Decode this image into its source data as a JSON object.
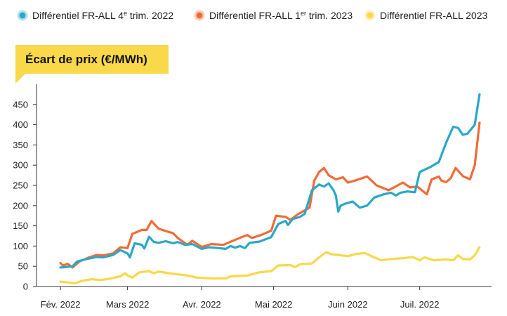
{
  "chart_data": {
    "type": "line",
    "title": "Écart de prix (€/MWh)",
    "xlabel": "",
    "ylabel": "",
    "x_tick_labels": [
      "Fév. 2022",
      "Mars 2022",
      "Avr. 2022",
      "Mai 2022",
      "Juin 2022",
      "Juil. 2022"
    ],
    "x_ticks": [
      "2022-02-01",
      "2022-03-01",
      "2022-04-01",
      "2022-05-01",
      "2022-06-01",
      "2022-07-01"
    ],
    "x_range": [
      "2022-01-22",
      "2022-07-31"
    ],
    "ylim": [
      0,
      500
    ],
    "y_ticks": [
      0,
      50,
      100,
      150,
      200,
      250,
      300,
      350,
      400,
      450
    ],
    "grid": false,
    "legend_position": "top",
    "series": [
      {
        "name": "Différentiel FR-ALL 4e trim. 2022",
        "name_parts": [
          "Différentiel FR-ALL 4",
          "e",
          " trim. 2022"
        ],
        "color": "#29a8c9",
        "points": [
          [
            "2022-02-01",
            47
          ],
          [
            "2022-02-03",
            48
          ],
          [
            "2022-02-06",
            50
          ],
          [
            "2022-02-08",
            62
          ],
          [
            "2022-02-12",
            68
          ],
          [
            "2022-02-16",
            73
          ],
          [
            "2022-02-19",
            72
          ],
          [
            "2022-02-23",
            78
          ],
          [
            "2022-02-26",
            90
          ],
          [
            "2022-03-01",
            82
          ],
          [
            "2022-03-02",
            72
          ],
          [
            "2022-03-04",
            107
          ],
          [
            "2022-03-07",
            103
          ],
          [
            "2022-03-08",
            94
          ],
          [
            "2022-03-10",
            123
          ],
          [
            "2022-03-12",
            110
          ],
          [
            "2022-03-14",
            108
          ],
          [
            "2022-03-17",
            112
          ],
          [
            "2022-03-20",
            107
          ],
          [
            "2022-03-22",
            110
          ],
          [
            "2022-03-25",
            103
          ],
          [
            "2022-03-28",
            105
          ],
          [
            "2022-04-01",
            93
          ],
          [
            "2022-04-04",
            97
          ],
          [
            "2022-04-08",
            95
          ],
          [
            "2022-04-11",
            93
          ],
          [
            "2022-04-13",
            100
          ],
          [
            "2022-04-15",
            96
          ],
          [
            "2022-04-17",
            100
          ],
          [
            "2022-04-19",
            95
          ],
          [
            "2022-04-21",
            108
          ],
          [
            "2022-04-25",
            111
          ],
          [
            "2022-04-30",
            122
          ],
          [
            "2022-05-03",
            155
          ],
          [
            "2022-05-06",
            162
          ],
          [
            "2022-05-07",
            152
          ],
          [
            "2022-05-09",
            167
          ],
          [
            "2022-05-12",
            172
          ],
          [
            "2022-05-14",
            180
          ],
          [
            "2022-05-17",
            238
          ],
          [
            "2022-05-20",
            252
          ],
          [
            "2022-05-22",
            247
          ],
          [
            "2022-05-24",
            255
          ],
          [
            "2022-05-26",
            238
          ],
          [
            "2022-05-27",
            225
          ],
          [
            "2022-05-28",
            185
          ],
          [
            "2022-05-29",
            200
          ],
          [
            "2022-05-31",
            205
          ],
          [
            "2022-06-03",
            210
          ],
          [
            "2022-06-06",
            195
          ],
          [
            "2022-06-09",
            200
          ],
          [
            "2022-06-12",
            220
          ],
          [
            "2022-06-16",
            228
          ],
          [
            "2022-06-19",
            232
          ],
          [
            "2022-06-21",
            225
          ],
          [
            "2022-06-23",
            232
          ],
          [
            "2022-06-26",
            235
          ],
          [
            "2022-06-29",
            233
          ],
          [
            "2022-07-01",
            283
          ],
          [
            "2022-07-06",
            297
          ],
          [
            "2022-07-09",
            308
          ],
          [
            "2022-07-12",
            355
          ],
          [
            "2022-07-15",
            395
          ],
          [
            "2022-07-17",
            392
          ],
          [
            "2022-07-19",
            375
          ],
          [
            "2022-07-21",
            378
          ],
          [
            "2022-07-24",
            400
          ],
          [
            "2022-07-26",
            475
          ]
        ]
      },
      {
        "name": "Différentiel FR-ALL 1er trim. 2023",
        "name_parts": [
          "Différentiel FR-ALL 1",
          "er",
          " trim. 2023"
        ],
        "color": "#f26b36",
        "points": [
          [
            "2022-02-01",
            58
          ],
          [
            "2022-02-02",
            52
          ],
          [
            "2022-02-04",
            56
          ],
          [
            "2022-02-06",
            47
          ],
          [
            "2022-02-09",
            62
          ],
          [
            "2022-02-13",
            72
          ],
          [
            "2022-02-16",
            78
          ],
          [
            "2022-02-19",
            77
          ],
          [
            "2022-02-23",
            82
          ],
          [
            "2022-02-26",
            97
          ],
          [
            "2022-03-01",
            95
          ],
          [
            "2022-03-03",
            130
          ],
          [
            "2022-03-07",
            140
          ],
          [
            "2022-03-09",
            140
          ],
          [
            "2022-03-11",
            162
          ],
          [
            "2022-03-14",
            143
          ],
          [
            "2022-03-17",
            137
          ],
          [
            "2022-03-20",
            132
          ],
          [
            "2022-03-22",
            120
          ],
          [
            "2022-03-26",
            103
          ],
          [
            "2022-03-28",
            113
          ],
          [
            "2022-04-01",
            98
          ],
          [
            "2022-04-05",
            105
          ],
          [
            "2022-04-10",
            103
          ],
          [
            "2022-04-14",
            113
          ],
          [
            "2022-04-18",
            123
          ],
          [
            "2022-04-20",
            127
          ],
          [
            "2022-04-22",
            120
          ],
          [
            "2022-04-26",
            128
          ],
          [
            "2022-04-30",
            138
          ],
          [
            "2022-05-02",
            175
          ],
          [
            "2022-05-06",
            172
          ],
          [
            "2022-05-08",
            165
          ],
          [
            "2022-05-11",
            178
          ],
          [
            "2022-05-16",
            195
          ],
          [
            "2022-05-18",
            262
          ],
          [
            "2022-05-20",
            283
          ],
          [
            "2022-05-22",
            293
          ],
          [
            "2022-05-24",
            275
          ],
          [
            "2022-05-27",
            265
          ],
          [
            "2022-05-30",
            270
          ],
          [
            "2022-06-01",
            257
          ],
          [
            "2022-06-04",
            262
          ],
          [
            "2022-06-09",
            272
          ],
          [
            "2022-06-13",
            250
          ],
          [
            "2022-06-18",
            238
          ],
          [
            "2022-06-24",
            257
          ],
          [
            "2022-06-27",
            245
          ],
          [
            "2022-06-30",
            247
          ],
          [
            "2022-07-04",
            228
          ],
          [
            "2022-07-06",
            265
          ],
          [
            "2022-07-09",
            272
          ],
          [
            "2022-07-10",
            262
          ],
          [
            "2022-07-12",
            258
          ],
          [
            "2022-07-14",
            268
          ],
          [
            "2022-07-16",
            293
          ],
          [
            "2022-07-19",
            273
          ],
          [
            "2022-07-22",
            265
          ],
          [
            "2022-07-24",
            300
          ],
          [
            "2022-07-26",
            405
          ]
        ]
      },
      {
        "name": "Différentiel FR-ALL 2023",
        "name_parts": [
          "Différentiel FR-ALL 2023",
          "",
          ""
        ],
        "color": "#f9d84a",
        "points": [
          [
            "2022-02-01",
            12
          ],
          [
            "2022-02-04",
            10
          ],
          [
            "2022-02-07",
            8
          ],
          [
            "2022-02-10",
            14
          ],
          [
            "2022-02-14",
            18
          ],
          [
            "2022-02-18",
            16
          ],
          [
            "2022-02-22",
            20
          ],
          [
            "2022-02-26",
            25
          ],
          [
            "2022-02-28",
            33
          ],
          [
            "2022-03-01",
            27
          ],
          [
            "2022-03-03",
            22
          ],
          [
            "2022-03-06",
            35
          ],
          [
            "2022-03-10",
            38
          ],
          [
            "2022-03-12",
            33
          ],
          [
            "2022-03-14",
            37
          ],
          [
            "2022-03-18",
            33
          ],
          [
            "2022-03-22",
            30
          ],
          [
            "2022-03-26",
            27
          ],
          [
            "2022-03-30",
            22
          ],
          [
            "2022-04-05",
            20
          ],
          [
            "2022-04-11",
            20
          ],
          [
            "2022-04-13",
            25
          ],
          [
            "2022-04-20",
            27
          ],
          [
            "2022-04-25",
            35
          ],
          [
            "2022-04-30",
            38
          ],
          [
            "2022-05-03",
            52
          ],
          [
            "2022-05-08",
            53
          ],
          [
            "2022-05-10",
            48
          ],
          [
            "2022-05-12",
            55
          ],
          [
            "2022-05-17",
            57
          ],
          [
            "2022-05-20",
            72
          ],
          [
            "2022-05-23",
            85
          ],
          [
            "2022-05-25",
            80
          ],
          [
            "2022-05-28",
            78
          ],
          [
            "2022-06-01",
            75
          ],
          [
            "2022-06-04",
            80
          ],
          [
            "2022-06-08",
            83
          ],
          [
            "2022-06-12",
            72
          ],
          [
            "2022-06-15",
            65
          ],
          [
            "2022-06-19",
            68
          ],
          [
            "2022-06-24",
            70
          ],
          [
            "2022-06-28",
            73
          ],
          [
            "2022-07-01",
            65
          ],
          [
            "2022-07-03",
            72
          ],
          [
            "2022-07-07",
            65
          ],
          [
            "2022-07-12",
            67
          ],
          [
            "2022-07-15",
            65
          ],
          [
            "2022-07-17",
            77
          ],
          [
            "2022-07-19",
            68
          ],
          [
            "2022-07-22",
            67
          ],
          [
            "2022-07-24",
            77
          ],
          [
            "2022-07-26",
            97
          ]
        ]
      }
    ]
  }
}
